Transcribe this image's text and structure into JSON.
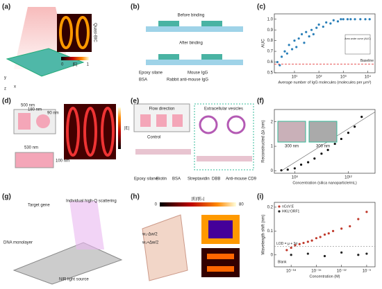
{
  "panel_labels": [
    "(a)",
    "(b)",
    "(c)",
    "(d)",
    "(e)",
    "(f)",
    "(g)",
    "(h)",
    "(i)"
  ],
  "a": {
    "colorbar_title": "Quasi-BIC",
    "cbar_min": "0",
    "cbar_label": "|E|",
    "cbar_max": "1",
    "axes": [
      "x",
      "y",
      "z"
    ]
  },
  "b": {
    "before": "Before binding",
    "after": "After binding",
    "legend": [
      "Epoxy silane",
      "Mouse IgG",
      "BSA",
      "Rabbit anti-mouse IgG"
    ]
  },
  "c": {
    "type": "scatter",
    "ylabel": "AUC",
    "xlabel": "Average number of IgG molecules (molecules per μm²)",
    "log_x": true,
    "xlim": [
      1.5,
      20000
    ],
    "xticks": [
      {
        "value": 10,
        "label": "10¹"
      },
      {
        "value": 100,
        "label": "10²"
      },
      {
        "value": 1000,
        "label": "10³"
      },
      {
        "value": 10000,
        "label": "10⁴"
      }
    ],
    "ylim": [
      0.5,
      1.05
    ],
    "yticks": [
      0.5,
      0.6,
      0.7,
      0.8,
      0.9,
      {
        "value": 1,
        "label": "1.0"
      }
    ],
    "baseline": 0.58,
    "baseline_label": "Baseline",
    "inset_label": "Area under curve (AUC)",
    "color": "#2a7fb8",
    "x": [
      2,
      2.5,
      3,
      4,
      5,
      6,
      8,
      10,
      12,
      15,
      20,
      25,
      30,
      40,
      50,
      60,
      80,
      100,
      150,
      200,
      300,
      400,
      600,
      800,
      1000,
      1500,
      2000,
      3000,
      5000,
      8000,
      12000
    ],
    "y": [
      0.6,
      0.57,
      0.65,
      0.7,
      0.68,
      0.76,
      0.72,
      0.8,
      0.74,
      0.82,
      0.86,
      0.78,
      0.88,
      0.84,
      0.9,
      0.86,
      0.92,
      0.95,
      0.93,
      0.97,
      0.96,
      0.99,
      0.98,
      1.0,
      1.0,
      1.0,
      1.0,
      1.0,
      1.0,
      1.0,
      1.0
    ]
  },
  "d": {
    "texts": [
      "500 nm",
      "180 nm",
      "90 nm",
      "530 nm",
      "100 nm"
    ],
    "cbar_label": "|E|"
  },
  "e": {
    "flow": "Flow direction",
    "control": "Control",
    "ev": "Extracellular vesicles",
    "legend": [
      "Epoxy silane",
      "Biotin",
      "BSA",
      "Streptavidin",
      "DBB",
      "Anti-mouse CD9"
    ]
  },
  "f": {
    "type": "scatter",
    "ylabel": "Reconstructed Δλ (nm)",
    "xlabel": "Concentration (silica nanoparticle/mL)",
    "log_x": true,
    "xlim": [
      3000000,
      100000000000000
    ],
    "xticks": [
      {
        "value": 100000000,
        "label": "10⁸"
      },
      {
        "value": 1000000000000,
        "label": "10¹²"
      }
    ],
    "ylim": [
      -0.1,
      2.5
    ],
    "yticks": [
      0,
      1,
      2
    ],
    "scale_bar": "300 nm",
    "color": "#111",
    "x": [
      10000000,
      30000000,
      100000000,
      300000000,
      1000000000,
      3000000000,
      10000000000,
      30000000000,
      100000000000,
      300000000000,
      1000000000000,
      3000000000000,
      10000000000000
    ],
    "y": [
      0.02,
      0.05,
      0.1,
      0.25,
      0.35,
      0.5,
      0.7,
      0.85,
      1.1,
      1.3,
      1.55,
      1.8,
      2.2
    ]
  },
  "g": {
    "texts": [
      "Target gene",
      "Individual high-Q scattering",
      "DNA monolayer",
      "NIR light source"
    ]
  },
  "h": {
    "cbar_label": "|E|/|E₀|",
    "cbar_min": "0",
    "cbar_max": "80",
    "w_minus": "w₁-Δw/2",
    "w_plus": "w₁+Δw/2"
  },
  "i": {
    "type": "scatter",
    "ylabel": "Wavelength shift (nm)",
    "xlabel": "Concentration (M)",
    "log_x": true,
    "xlim": [
      1e-20,
      1e-08
    ],
    "xticks": [
      {
        "value": 1e-18,
        "label": "10⁻¹⁸"
      },
      {
        "value": 1e-15,
        "label": "10⁻¹⁵"
      },
      {
        "value": 1e-12,
        "label": "10⁻¹²"
      },
      {
        "value": 1e-09,
        "label": "10⁻⁹"
      }
    ],
    "ylim": [
      -0.05,
      0.22
    ],
    "yticks": [
      0,
      0.1,
      0.2
    ],
    "lod": 0.035,
    "lod_label": "LOD = μ + 3σ",
    "blank_label": "Blank",
    "series": [
      {
        "name": "nCoV:E",
        "color": "#c0392b",
        "x": [
          3e-19,
          1e-18,
          3e-18,
          1e-17,
          3e-17,
          1e-16,
          3e-16,
          1e-15,
          3e-15,
          1e-14,
          3e-14,
          1e-13,
          1e-12,
          1e-11,
          1e-10,
          1e-09
        ],
        "y": [
          0.02,
          0.03,
          0.04,
          0.045,
          0.05,
          0.055,
          0.06,
          0.07,
          0.075,
          0.085,
          0.09,
          0.1,
          0.11,
          0.12,
          0.15,
          0.18
        ]
      },
      {
        "name": "HKU:ORF1",
        "color": "#222222",
        "x": [
          1e-18,
          1e-16,
          1e-14,
          1e-12,
          1e-10,
          1e-09
        ],
        "y": [
          0.0,
          0.005,
          -0.005,
          0.01,
          0.0,
          0.005
        ]
      }
    ]
  }
}
